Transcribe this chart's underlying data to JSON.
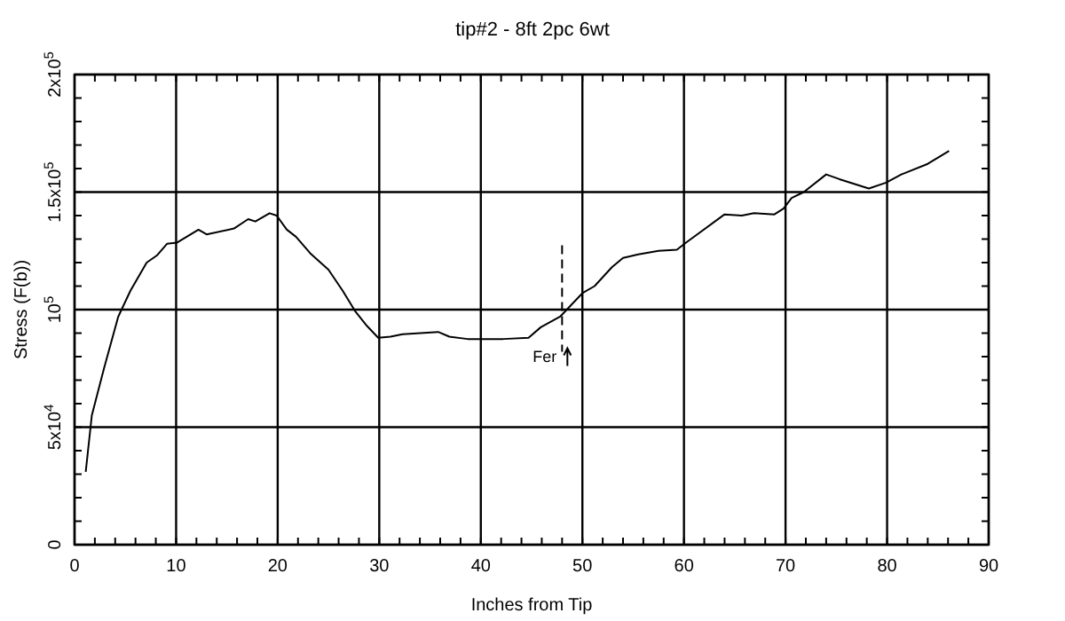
{
  "chart_data": {
    "type": "line",
    "title": "tip#2 - 8ft 2pc 6wt",
    "xlabel": "Inches from Tip",
    "ylabel": "Stress (F(b))",
    "x": [
      1.1,
      1.7,
      2.9,
      4.3,
      5.5,
      7.1,
      8.1,
      9.1,
      10.1,
      12.2,
      13,
      15.7,
      17.1,
      17.8,
      19.2,
      19.9,
      20.9,
      21.8,
      23.2,
      25,
      26.4,
      27.6,
      28.8,
      29.9,
      31.1,
      32.3,
      35.8,
      36.9,
      38.7,
      42.2,
      44.7,
      45.9,
      47.8,
      50,
      51.2,
      52.9,
      54,
      55.5,
      57.5,
      59.3,
      60.2,
      64,
      65.7,
      66.9,
      68.9,
      69.8,
      70.6,
      71.8,
      74,
      75.3,
      78.2,
      79.9,
      81.4,
      84,
      86.1
    ],
    "series": [
      {
        "color": "#000000",
        "values": [
          31000,
          55000,
          75000,
          97000,
          108000,
          120000,
          123000,
          128000,
          128500,
          134000,
          132000,
          134500,
          138500,
          137500,
          141000,
          140000,
          134000,
          131000,
          124000,
          117000,
          108000,
          99500,
          93000,
          88000,
          88500,
          89500,
          90500,
          88500,
          87500,
          87500,
          88000,
          92500,
          97000,
          107000,
          110000,
          118000,
          122000,
          123500,
          125000,
          125500,
          128500,
          140500,
          140000,
          141000,
          140500,
          143000,
          147500,
          150000,
          157500,
          155500,
          151500,
          154000,
          157500,
          162000,
          167500
        ]
      }
    ],
    "xlim": [
      0,
      90
    ],
    "xticks": [
      0,
      10,
      20,
      30,
      40,
      50,
      60,
      70,
      80,
      90
    ],
    "ylim": [
      0,
      200000
    ],
    "yticks": [
      0,
      {
        "value": 50000,
        "label": "5x10$^{4}$"
      },
      {
        "value": 100000,
        "label": "10$^{5}$"
      },
      {
        "value": 150000,
        "label": "1.5x10$^{5}$"
      },
      {
        "value": 200000,
        "label": "2x10$^{5}$"
      }
    ],
    "grid": true,
    "marker": "none",
    "line_style": "solid",
    "ref_lines": [
      {
        "axis": "x",
        "value": 48,
        "label": "Fer",
        "line_style": "dashed"
      }
    ]
  }
}
